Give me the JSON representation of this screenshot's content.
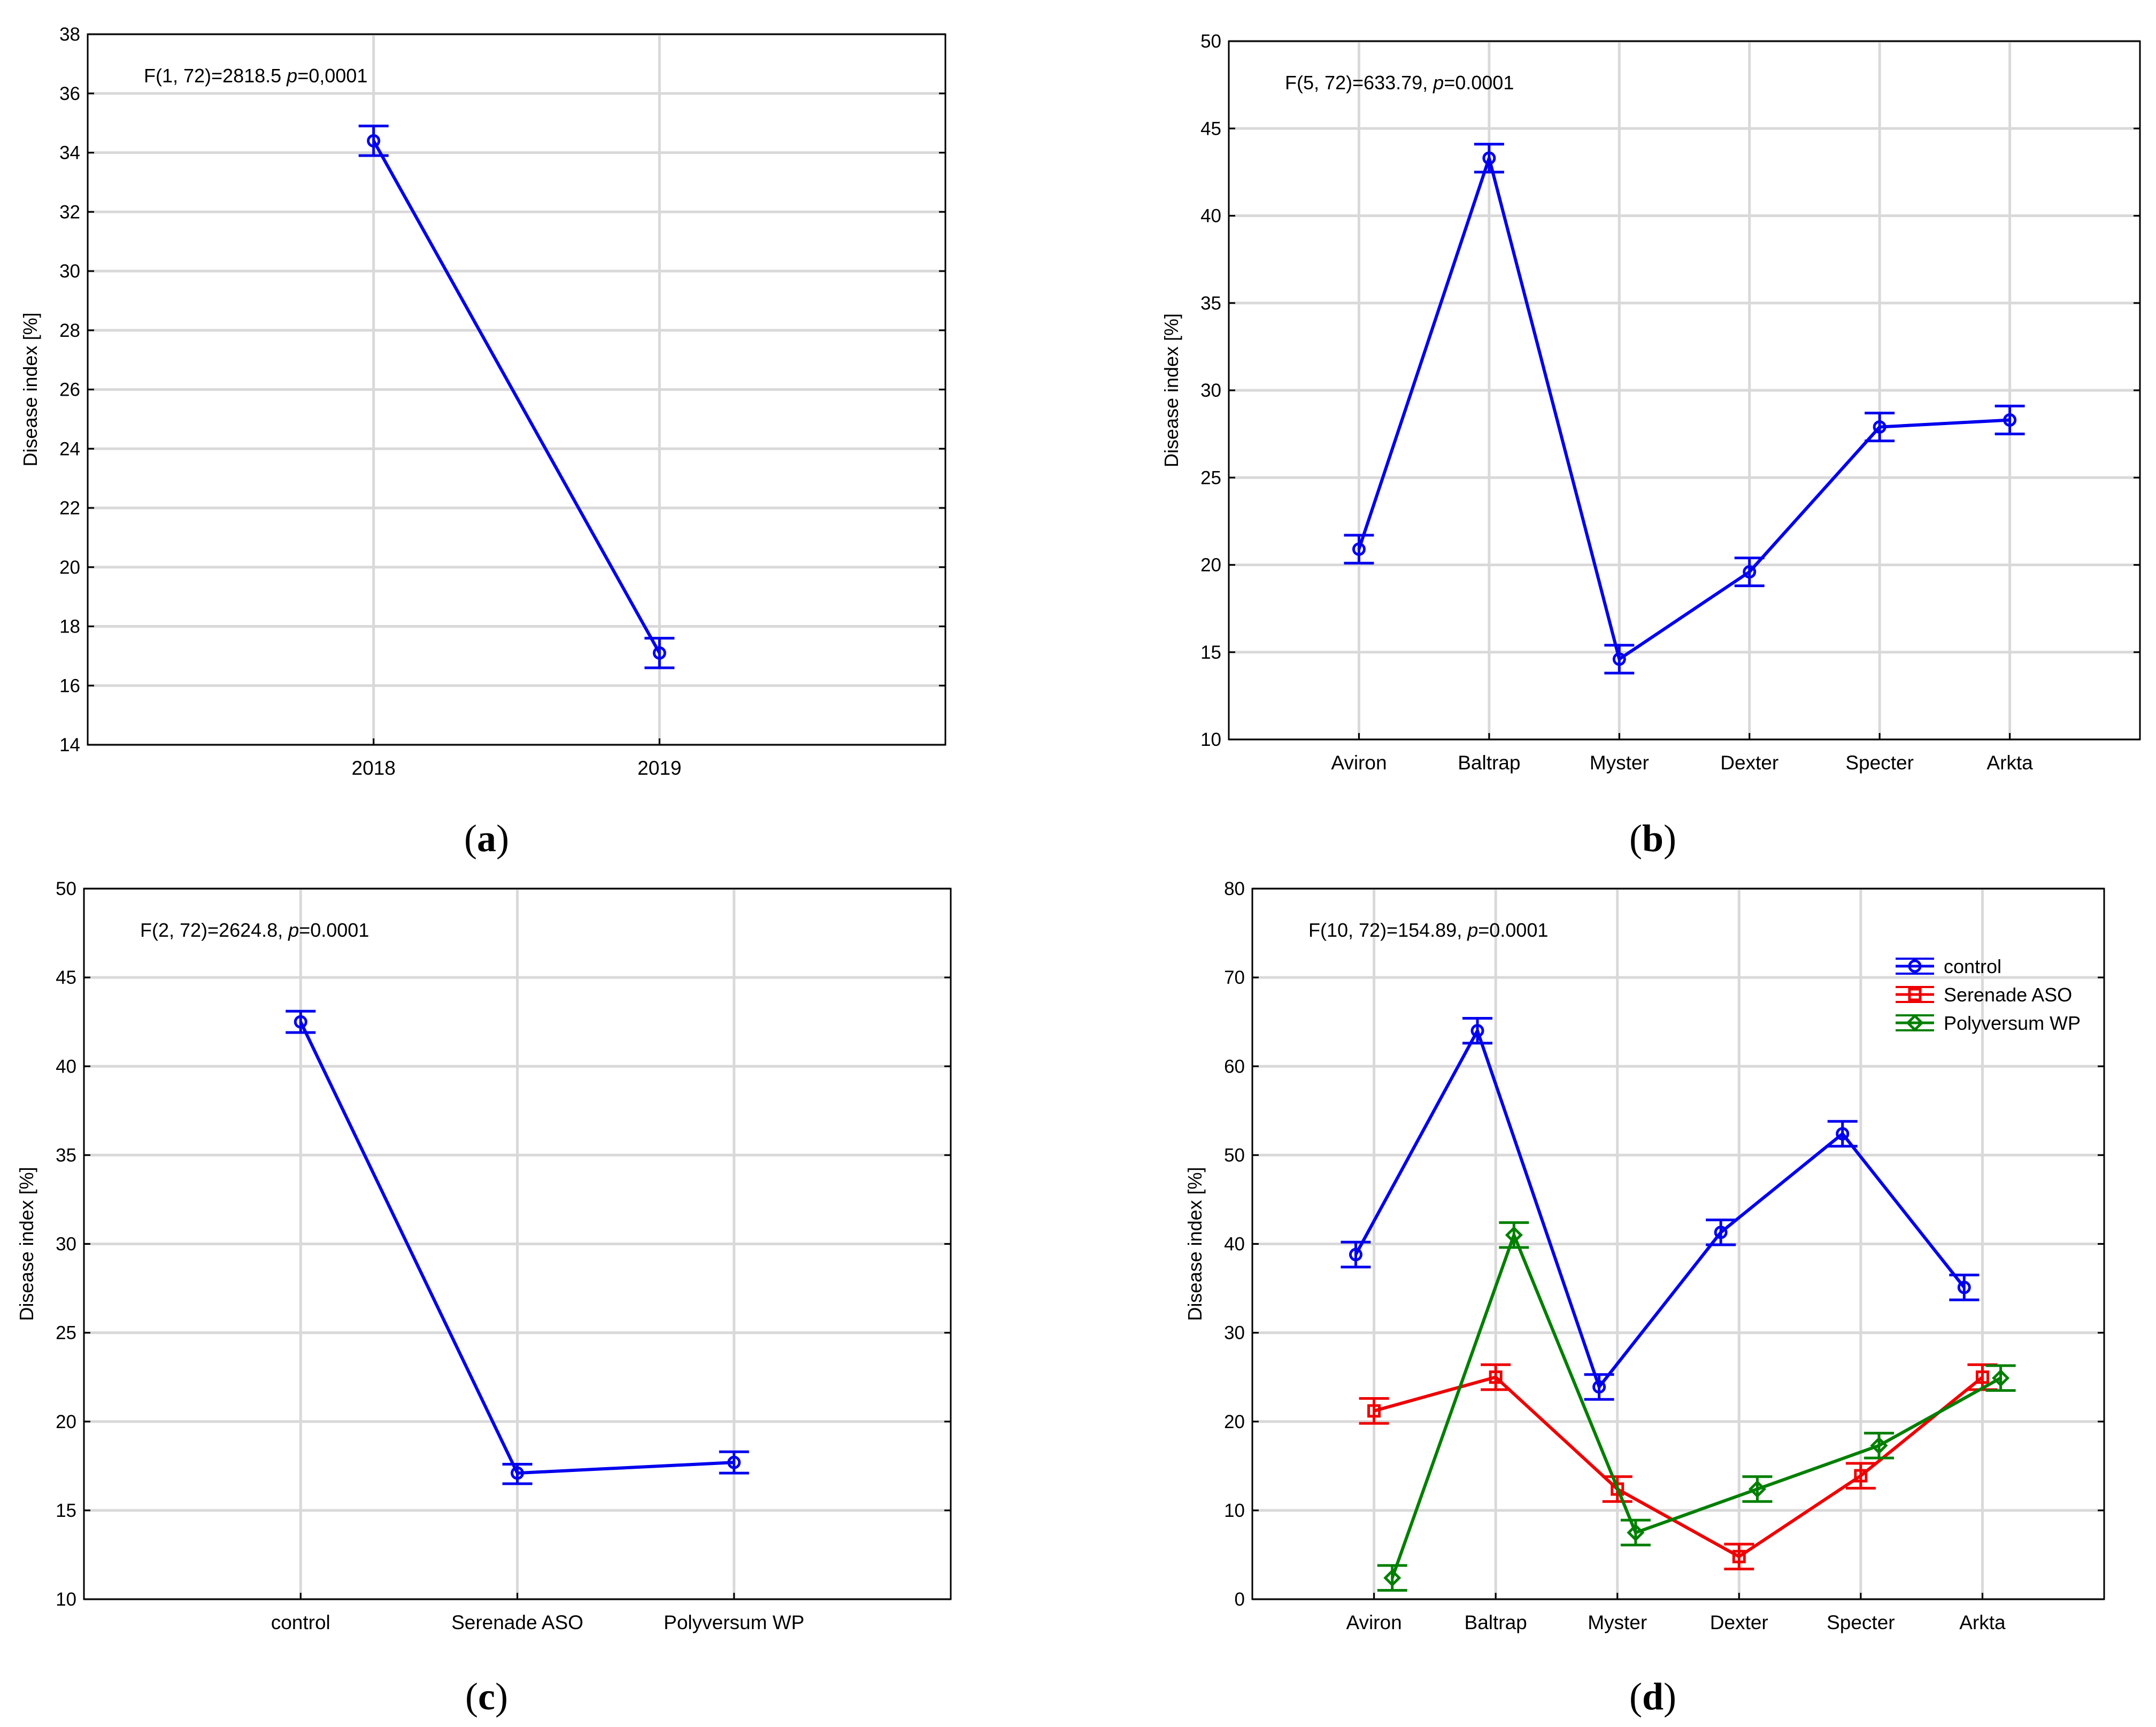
{
  "colors": {
    "blue": "#0000ee",
    "red": "#ee0000",
    "green": "#007f00",
    "grid": "#d9d9d9",
    "axis": "#000000"
  },
  "chart_data": [
    {
      "id": "a",
      "type": "line",
      "panel_label": "(a)",
      "letter": "a",
      "annotation": {
        "prefix": "F(1, 72)=2818.5 ",
        "p": "p",
        "suffix": "=0,0001"
      },
      "ylabel": "Disease index [%]",
      "xlabel": "",
      "ylim": [
        14,
        38
      ],
      "yticks": [
        14,
        16,
        18,
        20,
        22,
        24,
        26,
        28,
        30,
        32,
        34,
        36,
        38
      ],
      "categories": [
        "2018",
        "2019"
      ],
      "cat_slots": 3,
      "grid": true,
      "series": [
        {
          "name": "",
          "color": "blue",
          "marker": "circle",
          "values": [
            34.4,
            17.1
          ],
          "err_low": [
            33.9,
            16.6
          ],
          "err_high": [
            34.9,
            17.6
          ],
          "offset": 0
        }
      ]
    },
    {
      "id": "b",
      "type": "line",
      "panel_label": "(b)",
      "letter": "b",
      "annotation": {
        "prefix": "F(5, 72)=633.79, ",
        "p": "p",
        "suffix": "=0.0001"
      },
      "ylabel": "Disease index [%]",
      "xlabel": "",
      "ylim": [
        10,
        50
      ],
      "yticks": [
        10,
        15,
        20,
        25,
        30,
        35,
        40,
        45,
        50
      ],
      "categories": [
        "Aviron",
        "Baltrap",
        "Myster",
        "Dexter",
        "Specter",
        "Arkta"
      ],
      "cat_slots": 7,
      "grid": true,
      "series": [
        {
          "name": "",
          "color": "blue",
          "marker": "circle",
          "values": [
            20.9,
            43.3,
            14.6,
            19.6,
            27.9,
            28.3
          ],
          "err_low": [
            20.1,
            42.5,
            13.8,
            18.8,
            27.1,
            27.5
          ],
          "err_high": [
            21.7,
            44.1,
            15.4,
            20.4,
            28.7,
            29.1
          ],
          "offset": 0
        }
      ]
    },
    {
      "id": "c",
      "type": "line",
      "panel_label": "(c)",
      "letter": "c",
      "annotation": {
        "prefix": "F(2, 72)=2624.8, ",
        "p": "p",
        "suffix": "=0.0001"
      },
      "ylabel": "Disease index [%]",
      "xlabel": "",
      "ylim": [
        10,
        50
      ],
      "yticks": [
        10,
        15,
        20,
        25,
        30,
        35,
        40,
        45,
        50
      ],
      "categories": [
        "control",
        "Serenade ASO",
        "Polyversum WP"
      ],
      "cat_slots": 4,
      "grid": true,
      "series": [
        {
          "name": "",
          "color": "blue",
          "marker": "circle",
          "values": [
            42.5,
            17.1,
            17.7
          ],
          "err_low": [
            41.9,
            16.5,
            17.1
          ],
          "err_high": [
            43.1,
            17.6,
            18.3
          ],
          "offset": 0
        }
      ]
    },
    {
      "id": "d",
      "type": "line",
      "panel_label": "(d)",
      "letter": "d",
      "annotation": {
        "prefix": "F(10, 72)=154.89, ",
        "p": "p",
        "suffix": "=0.0001"
      },
      "ylabel": "Disease index [%]",
      "xlabel": "",
      "ylim": [
        0,
        80
      ],
      "yticks": [
        0,
        10,
        20,
        30,
        40,
        50,
        60,
        70,
        80
      ],
      "categories": [
        "Aviron",
        "Baltrap",
        "Myster",
        "Dexter",
        "Specter",
        "Arkta"
      ],
      "cat_slots": 7,
      "grid": true,
      "legend_position": "top-right",
      "series": [
        {
          "name": "control",
          "color": "blue",
          "marker": "circle",
          "values": [
            38.8,
            64.0,
            23.9,
            41.3,
            52.4,
            35.1
          ],
          "err_low": [
            37.4,
            62.6,
            22.5,
            39.9,
            51.0,
            33.7
          ],
          "err_high": [
            40.2,
            65.4,
            25.3,
            42.7,
            53.8,
            36.5
          ],
          "offset": -0.15
        },
        {
          "name": "Serenade ASO",
          "color": "red",
          "marker": "square",
          "values": [
            21.2,
            25.0,
            12.4,
            4.8,
            13.9,
            25.0
          ],
          "err_low": [
            19.8,
            23.6,
            11.0,
            3.4,
            12.5,
            23.6
          ],
          "err_high": [
            22.6,
            26.4,
            13.8,
            6.2,
            15.3,
            26.4
          ],
          "offset": 0
        },
        {
          "name": "Polyversum WP",
          "color": "green",
          "marker": "diamond",
          "values": [
            2.4,
            41.0,
            7.5,
            12.4,
            17.3,
            24.9
          ],
          "err_low": [
            1.0,
            39.6,
            6.1,
            11.0,
            15.9,
            23.5
          ],
          "err_high": [
            3.8,
            42.4,
            8.9,
            13.8,
            18.7,
            26.3
          ],
          "offset": 0.15
        }
      ]
    }
  ]
}
